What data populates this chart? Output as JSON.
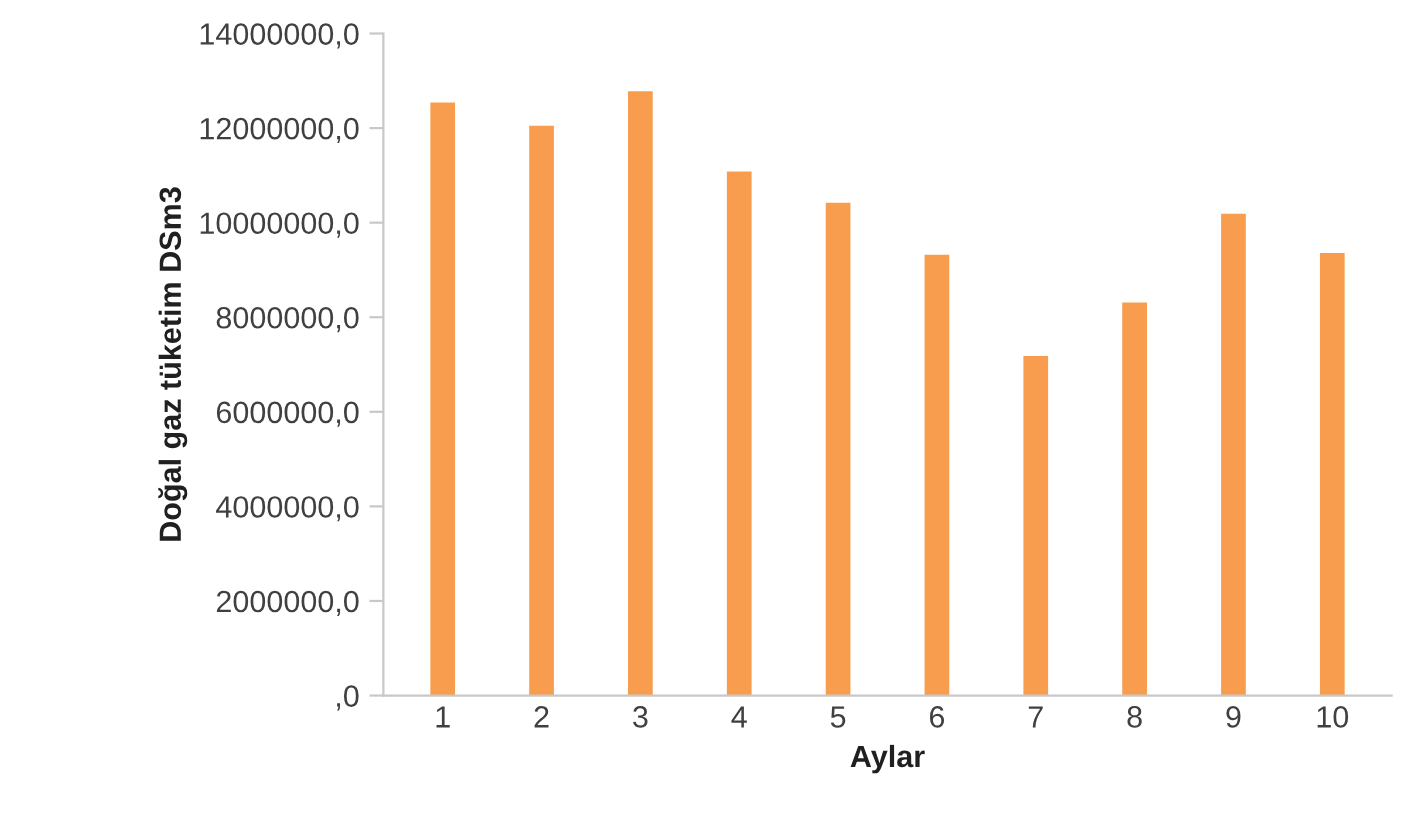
{
  "chart_data": {
    "type": "bar",
    "xlabel": "Aylar",
    "ylabel": "Doğal gaz tüketim DSm3",
    "categories": [
      "1",
      "2",
      "3",
      "4",
      "5",
      "6",
      "7",
      "8",
      "9",
      "10"
    ],
    "values": [
      12540000,
      12050000,
      12780000,
      11080000,
      10420000,
      9320000,
      7180000,
      8310000,
      10190000,
      9360000
    ],
    "color": "#f79d4d",
    "ylim": [
      0,
      14000000
    ],
    "yticks": [
      {
        "value": 0,
        "label": ",0"
      },
      {
        "value": 2000000,
        "label": "2000000,0"
      },
      {
        "value": 4000000,
        "label": "4000000,0"
      },
      {
        "value": 6000000,
        "label": "6000000,0"
      },
      {
        "value": 8000000,
        "label": "8000000,0"
      },
      {
        "value": 10000000,
        "label": "10000000,0"
      },
      {
        "value": 12000000,
        "label": "12000000,0"
      },
      {
        "value": 14000000,
        "label": "14000000,0"
      }
    ],
    "grid": false
  }
}
